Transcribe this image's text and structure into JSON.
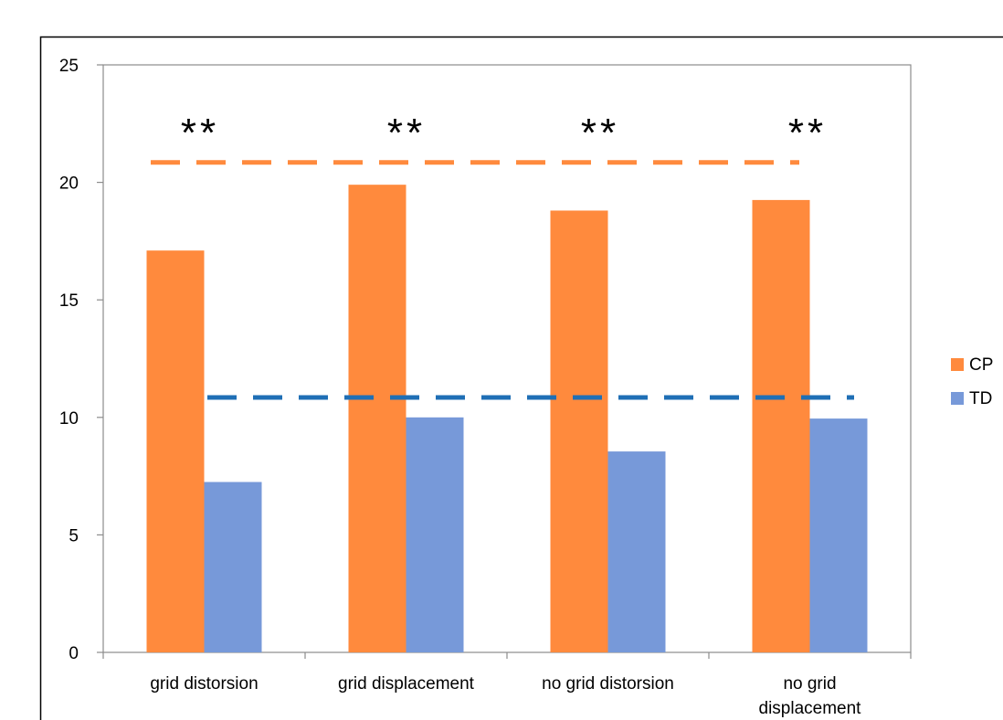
{
  "chart_data": {
    "type": "bar",
    "categories": [
      "grid distorsion",
      "grid displacement",
      "no grid distorsion",
      "no grid displacement"
    ],
    "series": [
      {
        "name": "CP",
        "values": [
          17.1,
          19.9,
          18.8,
          19.25
        ]
      },
      {
        "name": "TD",
        "values": [
          7.25,
          10.0,
          8.55,
          9.95
        ]
      }
    ],
    "ylim": [
      0,
      25
    ],
    "yticks": [
      0,
      5,
      10,
      15,
      20,
      25
    ],
    "reference_lines": [
      {
        "series": "CP",
        "value": 20.85,
        "style": "dashed"
      },
      {
        "series": "TD",
        "value": 10.85,
        "style": "dashed"
      }
    ],
    "annotations": [
      "**",
      "**",
      "**",
      "**"
    ],
    "legend_position": "right",
    "grid": false
  },
  "colors": {
    "CP": "#FF8A3D",
    "TD": "#7799D9",
    "cp_line": "#FF8A3D",
    "td_line": "#1F6FB5",
    "axis": "#8c8c8c",
    "frame": "#000000"
  }
}
